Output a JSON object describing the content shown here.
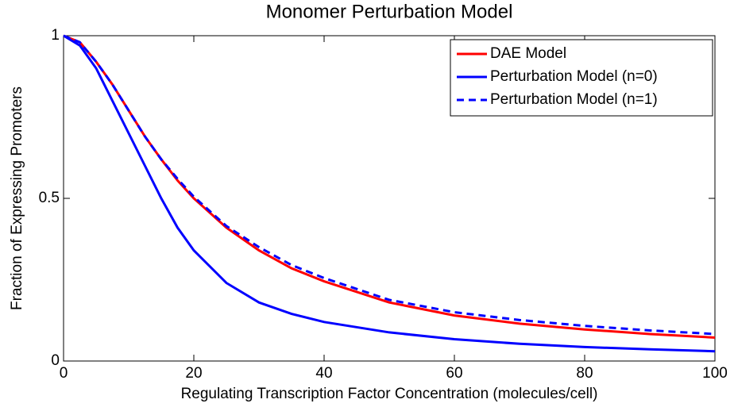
{
  "chart_data": {
    "type": "line",
    "title": "Monomer Perturbation Model",
    "x_label": "Regulating Transcription Factor Concentration (molecules/cell)",
    "y_label": "Fraction of Expressing Promoters",
    "x": [
      0,
      2.5,
      5,
      7.5,
      10,
      12.5,
      15,
      17.5,
      20,
      25,
      30,
      35,
      40,
      50,
      60,
      70,
      80,
      90,
      100
    ],
    "series": [
      {
        "name": "DAE Model",
        "color": "#ff0000",
        "linestyle": "solid",
        "values": [
          1,
          0.98,
          0.92,
          0.85,
          0.77,
          0.69,
          0.62,
          0.555,
          0.5,
          0.41,
          0.34,
          0.285,
          0.245,
          0.18,
          0.14,
          0.115,
          0.097,
          0.083,
          0.072
        ]
      },
      {
        "name": "Perturbation Model (n=0)",
        "color": "#0000ff",
        "linestyle": "solid",
        "values": [
          1,
          0.97,
          0.9,
          0.8,
          0.7,
          0.6,
          0.5,
          0.41,
          0.34,
          0.24,
          0.18,
          0.145,
          0.12,
          0.088,
          0.067,
          0.053,
          0.043,
          0.036,
          0.03
        ]
      },
      {
        "name": "Perturbation Model (n=1)",
        "color": "#0000ff",
        "linestyle": "dashed",
        "values": [
          1,
          0.98,
          0.92,
          0.85,
          0.77,
          0.69,
          0.62,
          0.56,
          0.505,
          0.415,
          0.35,
          0.295,
          0.255,
          0.188,
          0.15,
          0.126,
          0.108,
          0.094,
          0.083
        ]
      }
    ],
    "xlim": [
      0,
      100
    ],
    "xticks": [
      0,
      20,
      40,
      60,
      80,
      100
    ],
    "ylim": [
      0,
      1
    ],
    "yticks": [
      0,
      0.5,
      1
    ],
    "legend": "northeast",
    "grid": false
  }
}
